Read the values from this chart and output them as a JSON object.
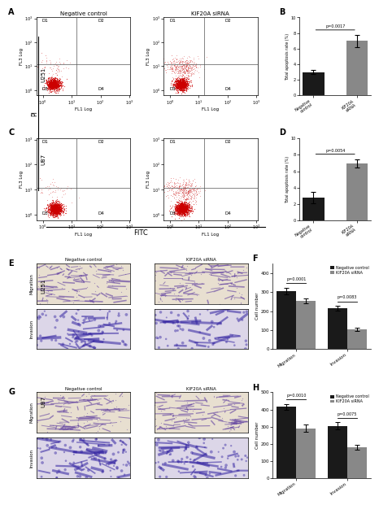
{
  "bar_B": {
    "categories": [
      "Negative control",
      "KIF20A siRNA"
    ],
    "values": [
      3.0,
      7.0
    ],
    "errors": [
      0.3,
      0.8
    ],
    "colors": [
      "#1a1a1a",
      "#888888"
    ],
    "ylabel": "Total apoptosis rate (%)",
    "ylim": [
      0,
      10
    ],
    "pvalue": "p=0.0017",
    "yticks": [
      0,
      2,
      4,
      6,
      8,
      10
    ]
  },
  "bar_D": {
    "categories": [
      "Negative control",
      "KIF20A siRNA"
    ],
    "values": [
      2.8,
      7.0
    ],
    "errors": [
      0.7,
      0.5
    ],
    "colors": [
      "#1a1a1a",
      "#888888"
    ],
    "ylabel": "Total apoptosis rate (%)",
    "ylim": [
      0,
      10
    ],
    "pvalue": "p=0.0054",
    "yticks": [
      0,
      2,
      4,
      6,
      8,
      10
    ]
  },
  "bar_F": {
    "categories": [
      "Migration",
      "Invasion"
    ],
    "neg_values": [
      305,
      215
    ],
    "sirna_values": [
      255,
      105
    ],
    "neg_errors": [
      18,
      14
    ],
    "sirna_errors": [
      12,
      9
    ],
    "colors": [
      "#1a1a1a",
      "#888888"
    ],
    "ylabel": "Cell number",
    "ylim": [
      0,
      450
    ],
    "yticks": [
      0,
      100,
      200,
      300,
      400
    ],
    "pvalues": [
      "p=0.0001",
      "p=0.0083"
    ],
    "legend": [
      "Negative control",
      "KIF20A siRNA"
    ]
  },
  "bar_H": {
    "categories": [
      "Migration",
      "Invasion"
    ],
    "neg_values": [
      415,
      305
    ],
    "sirna_values": [
      290,
      180
    ],
    "neg_errors": [
      18,
      20
    ],
    "sirna_errors": [
      22,
      14
    ],
    "colors": [
      "#1a1a1a",
      "#888888"
    ],
    "ylabel": "Cell number",
    "ylim": [
      0,
      500
    ],
    "yticks": [
      0,
      100,
      200,
      300,
      400,
      500
    ],
    "pvalues": [
      "p=0.0010",
      "p=0.0075"
    ],
    "legend": [
      "Negative control",
      "KIF20A siRNA"
    ]
  },
  "flow": {
    "xlim": [
      0.6,
      1100
    ],
    "ylim": [
      0.6,
      1100
    ],
    "vline": 15,
    "hline": 12,
    "dot_color": "#cc0000"
  },
  "micro_migration_bg": "#e8e0d5",
  "micro_invasion_bg": "#ddd8ee",
  "micro_migration_dot": "#6050a0",
  "micro_invasion_dot": "#4030a0"
}
